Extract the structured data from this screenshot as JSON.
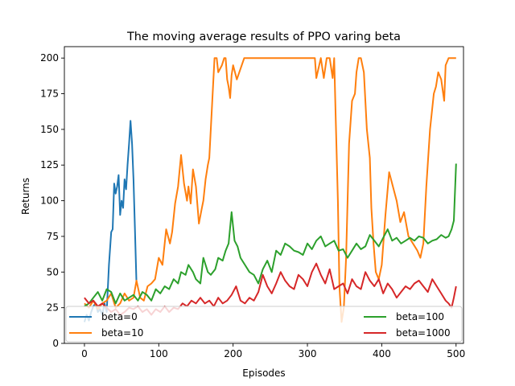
{
  "chart_data": {
    "type": "line",
    "title": "The moving average results of PPO varing beta",
    "xlabel": "Episodes",
    "ylabel": "Returns",
    "xlim": [
      -27,
      510
    ],
    "ylim": [
      0,
      208
    ],
    "xticks": [
      0,
      100,
      200,
      300,
      400,
      500
    ],
    "yticks": [
      0,
      25,
      50,
      75,
      100,
      125,
      150,
      175,
      200
    ],
    "grid": false,
    "legend": "lower center, 2 columns",
    "series": [
      {
        "name": "beta=0",
        "color": "#1f77b4",
        "x": [
          0,
          3,
          6,
          9,
          12,
          15,
          18,
          21,
          24,
          27,
          30,
          33,
          36,
          38,
          40,
          42,
          44,
          46,
          48,
          50,
          52,
          54,
          56,
          58,
          60,
          62,
          64,
          66,
          68,
          70
        ],
        "y": [
          15,
          20,
          16,
          22,
          26,
          28,
          22,
          24,
          20,
          28,
          22,
          55,
          78,
          80,
          112,
          105,
          110,
          118,
          90,
          100,
          95,
          115,
          108,
          125,
          140,
          156,
          140,
          115,
          80,
          42
        ]
      },
      {
        "name": "beta=10",
        "color": "#ff7f0e",
        "x": [
          0,
          6,
          12,
          18,
          24,
          30,
          36,
          42,
          48,
          54,
          60,
          66,
          70,
          75,
          80,
          85,
          90,
          95,
          100,
          105,
          110,
          115,
          118,
          122,
          126,
          130,
          134,
          138,
          140,
          143,
          146,
          150,
          154,
          158,
          160,
          163,
          166,
          168,
          172,
          175,
          178,
          180,
          185,
          188,
          190,
          192,
          194,
          196,
          198,
          200,
          205,
          215,
          230,
          250,
          270,
          290,
          300,
          310,
          312,
          318,
          322,
          326,
          330,
          334,
          336,
          338,
          341,
          343,
          346,
          349,
          352,
          356,
          360,
          364,
          366,
          369,
          372,
          376,
          380,
          384,
          386,
          389,
          392,
          396,
          400,
          405,
          410,
          420,
          425,
          430,
          436,
          442,
          448,
          452,
          456,
          460,
          465,
          470,
          473,
          476,
          480,
          484,
          486,
          490,
          494,
          497,
          500
        ],
        "y": [
          28,
          25,
          30,
          24,
          28,
          30,
          35,
          25,
          28,
          35,
          30,
          32,
          44,
          32,
          30,
          40,
          42,
          45,
          60,
          55,
          80,
          70,
          78,
          98,
          110,
          132,
          112,
          100,
          110,
          98,
          122,
          110,
          84,
          95,
          100,
          115,
          125,
          130,
          170,
          200,
          200,
          190,
          195,
          200,
          200,
          185,
          180,
          172,
          188,
          195,
          185,
          200,
          200,
          200,
          200,
          200,
          200,
          200,
          186,
          200,
          186,
          200,
          200,
          186,
          200,
          160,
          100,
          40,
          15,
          25,
          60,
          140,
          170,
          175,
          190,
          200,
          200,
          190,
          150,
          130,
          95,
          70,
          50,
          45,
          55,
          90,
          120,
          100,
          85,
          92,
          75,
          70,
          65,
          60,
          70,
          110,
          150,
          175,
          180,
          190,
          185,
          170,
          195,
          200,
          200,
          200,
          200
        ]
      },
      {
        "name": "beta=100",
        "color": "#2ca02c",
        "x": [
          0,
          6,
          12,
          18,
          24,
          30,
          36,
          42,
          48,
          54,
          60,
          66,
          72,
          78,
          84,
          90,
          96,
          102,
          108,
          114,
          120,
          126,
          130,
          136,
          140,
          146,
          150,
          156,
          160,
          166,
          170,
          176,
          180,
          186,
          190,
          194,
          198,
          202,
          206,
          210,
          216,
          222,
          228,
          234,
          240,
          246,
          252,
          258,
          264,
          270,
          276,
          282,
          288,
          294,
          300,
          306,
          312,
          318,
          324,
          330,
          336,
          342,
          348,
          354,
          360,
          366,
          372,
          378,
          384,
          390,
          396,
          402,
          408,
          414,
          420,
          426,
          432,
          438,
          444,
          450,
          456,
          462,
          468,
          474,
          480,
          486,
          490,
          494,
          497,
          500
        ],
        "y": [
          26,
          28,
          32,
          36,
          30,
          38,
          36,
          28,
          35,
          30,
          32,
          34,
          30,
          36,
          34,
          30,
          38,
          35,
          40,
          38,
          45,
          42,
          50,
          48,
          55,
          50,
          45,
          42,
          60,
          50,
          48,
          52,
          60,
          58,
          65,
          70,
          92,
          72,
          68,
          60,
          55,
          50,
          48,
          42,
          52,
          58,
          50,
          65,
          62,
          70,
          68,
          65,
          64,
          62,
          70,
          66,
          72,
          75,
          68,
          70,
          72,
          65,
          66,
          60,
          65,
          70,
          66,
          68,
          76,
          72,
          68,
          74,
          80,
          72,
          74,
          70,
          72,
          74,
          72,
          75,
          74,
          70,
          72,
          73,
          76,
          74,
          75,
          80,
          86,
          126
        ]
      },
      {
        "name": "beta=1000",
        "color": "#d62728",
        "x": [
          0,
          6,
          12,
          18,
          24,
          30,
          36,
          42,
          48,
          54,
          60,
          66,
          72,
          78,
          84,
          90,
          96,
          102,
          108,
          114,
          120,
          126,
          132,
          138,
          144,
          150,
          156,
          162,
          168,
          174,
          180,
          186,
          192,
          198,
          204,
          210,
          216,
          222,
          228,
          234,
          240,
          246,
          252,
          258,
          264,
          270,
          276,
          282,
          288,
          294,
          300,
          306,
          312,
          318,
          324,
          330,
          336,
          342,
          348,
          354,
          360,
          366,
          372,
          378,
          384,
          390,
          396,
          402,
          408,
          414,
          420,
          426,
          432,
          438,
          444,
          450,
          456,
          462,
          468,
          474,
          480,
          486,
          490,
          494,
          497,
          500
        ],
        "y": [
          32,
          28,
          30,
          26,
          28,
          25,
          22,
          24,
          20,
          22,
          25,
          24,
          26,
          22,
          24,
          20,
          24,
          22,
          26,
          22,
          25,
          24,
          28,
          26,
          30,
          28,
          32,
          28,
          30,
          26,
          32,
          28,
          30,
          34,
          40,
          30,
          28,
          32,
          30,
          36,
          48,
          40,
          35,
          42,
          50,
          44,
          40,
          38,
          48,
          45,
          40,
          50,
          56,
          48,
          42,
          52,
          38,
          40,
          42,
          35,
          45,
          40,
          38,
          50,
          44,
          40,
          45,
          35,
          42,
          38,
          32,
          36,
          40,
          38,
          42,
          44,
          40,
          36,
          45,
          40,
          35,
          30,
          28,
          25,
          32,
          40
        ]
      }
    ]
  }
}
